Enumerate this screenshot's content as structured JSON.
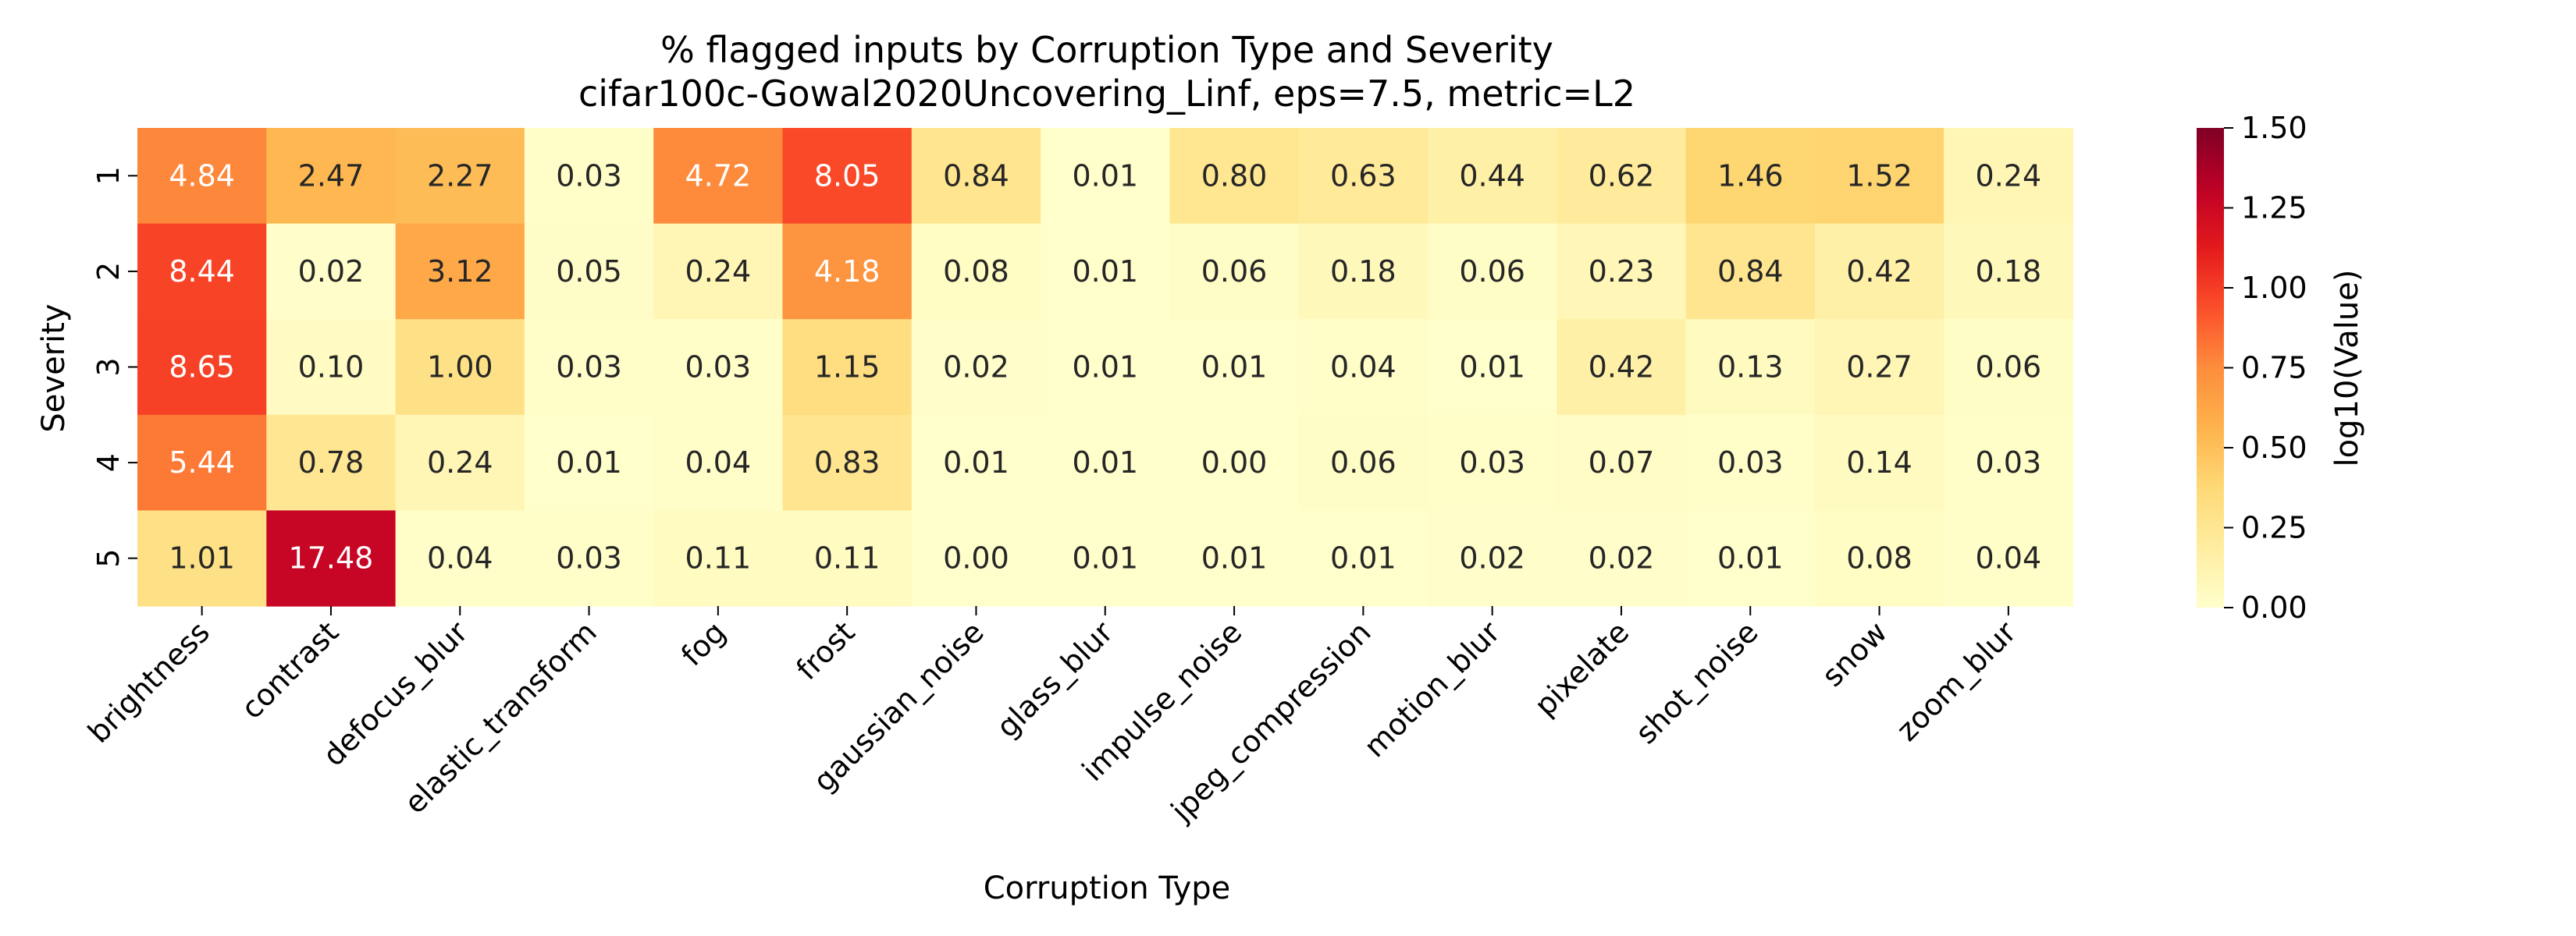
{
  "chart_data": {
    "type": "heatmap",
    "title": "% flagged inputs by Corruption Type and Severity",
    "subtitle": "cifar100c-Gowal2020Uncovering_Linf, eps=7.5, metric=L2",
    "xlabel": "Corruption Type",
    "ylabel": "Severity",
    "colorbar_label": "log10(Value)",
    "colormap": "YlOrRd",
    "color_scale": "log10(1 + value)",
    "colorbar_range": [
      0,
      1.5
    ],
    "colorbar_ticks": [
      "0.00",
      "0.25",
      "0.50",
      "0.75",
      "1.00",
      "1.25",
      "1.50"
    ],
    "x_categories": [
      "brightness",
      "contrast",
      "defocus_blur",
      "elastic_transform",
      "fog",
      "frost",
      "gaussian_noise",
      "glass_blur",
      "impulse_noise",
      "jpeg_compression",
      "motion_blur",
      "pixelate",
      "shot_noise",
      "snow",
      "zoom_blur"
    ],
    "y_categories": [
      "1",
      "2",
      "3",
      "4",
      "5"
    ],
    "values": [
      [
        4.84,
        2.47,
        2.27,
        0.03,
        4.72,
        8.05,
        0.84,
        0.01,
        0.8,
        0.63,
        0.44,
        0.62,
        1.46,
        1.52,
        0.24
      ],
      [
        8.44,
        0.02,
        3.12,
        0.05,
        0.24,
        4.18,
        0.08,
        0.01,
        0.06,
        0.18,
        0.06,
        0.23,
        0.84,
        0.42,
        0.18
      ],
      [
        8.65,
        0.1,
        1.0,
        0.03,
        0.03,
        1.15,
        0.02,
        0.01,
        0.01,
        0.04,
        0.01,
        0.42,
        0.13,
        0.27,
        0.06
      ],
      [
        5.44,
        0.78,
        0.24,
        0.01,
        0.04,
        0.83,
        0.01,
        0.01,
        0.0,
        0.06,
        0.03,
        0.07,
        0.03,
        0.14,
        0.03
      ],
      [
        1.01,
        17.48,
        0.04,
        0.03,
        0.11,
        0.11,
        0.0,
        0.01,
        0.01,
        0.01,
        0.02,
        0.02,
        0.01,
        0.08,
        0.04
      ]
    ],
    "value_format": "2 decimals",
    "grid": false
  }
}
